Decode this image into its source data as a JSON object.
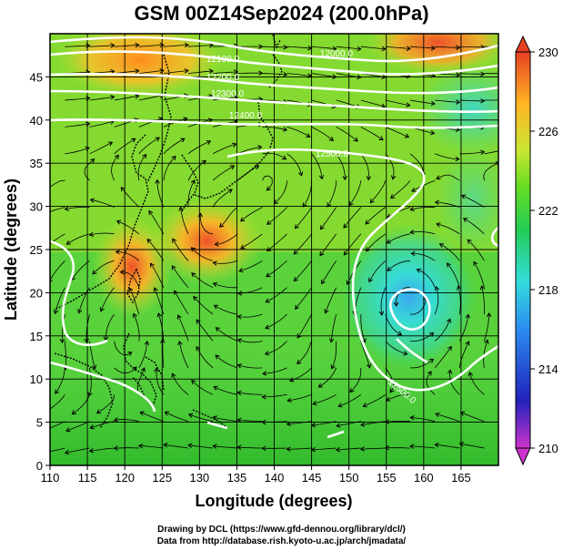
{
  "title": "GSM 00Z14Sep2024 (200.0hPa)",
  "map": {
    "xlabel": "Longitude (degrees)",
    "ylabel": "Latitude  (degrees)",
    "xlim": [
      110,
      170
    ],
    "ylim": [
      0,
      50
    ],
    "xticks": [
      110,
      115,
      120,
      125,
      130,
      135,
      140,
      145,
      150,
      155,
      160,
      165
    ],
    "yticks": [
      0,
      5,
      10,
      15,
      20,
      25,
      30,
      35,
      40,
      45
    ],
    "grid": true,
    "colorbar": {
      "ticks": [
        230,
        226,
        222,
        218,
        214,
        210
      ],
      "range": [
        210,
        230
      ],
      "colors": [
        "#cc33cc",
        "#2222bb",
        "#2a8cf0",
        "#33dcdc",
        "#22cc55",
        "#66dd22",
        "#c8e632",
        "#ffb423",
        "#e64023"
      ]
    },
    "contours": [
      {
        "label": "12000.0",
        "lat": 47.5
      },
      {
        "label": "12100.0",
        "lat": 46.5
      },
      {
        "label": "12200.0",
        "lat": 44.5
      },
      {
        "label": "12300.0",
        "lat": 42.8
      },
      {
        "label": "12400.0",
        "lat": 40.5
      },
      {
        "label": "12500.0",
        "lat": 33.5
      },
      {
        "label": "12500.0",
        "lat": 10.5
      }
    ],
    "temperature_features": [
      {
        "name": "warm-core-north",
        "lon": 122,
        "lat": 47,
        "value": 228
      },
      {
        "name": "warm-core-east",
        "lon": 162,
        "lat": 49,
        "value": 229
      },
      {
        "name": "warm-core-typhoon",
        "lon": 121,
        "lat": 23,
        "value": 228
      },
      {
        "name": "warm-core-ryukyu",
        "lon": 131,
        "lat": 26,
        "value": 227
      },
      {
        "name": "cold-core-vortex",
        "lon": 158,
        "lat": 19.5,
        "value": 218
      }
    ]
  },
  "credits": {
    "line1": "Drawing by DCL (https://www.gfd-dennou.org/library/dcl/)",
    "line2": "Data from http://database.rish.kyoto-u.ac.jp/arch/jmadata/"
  }
}
